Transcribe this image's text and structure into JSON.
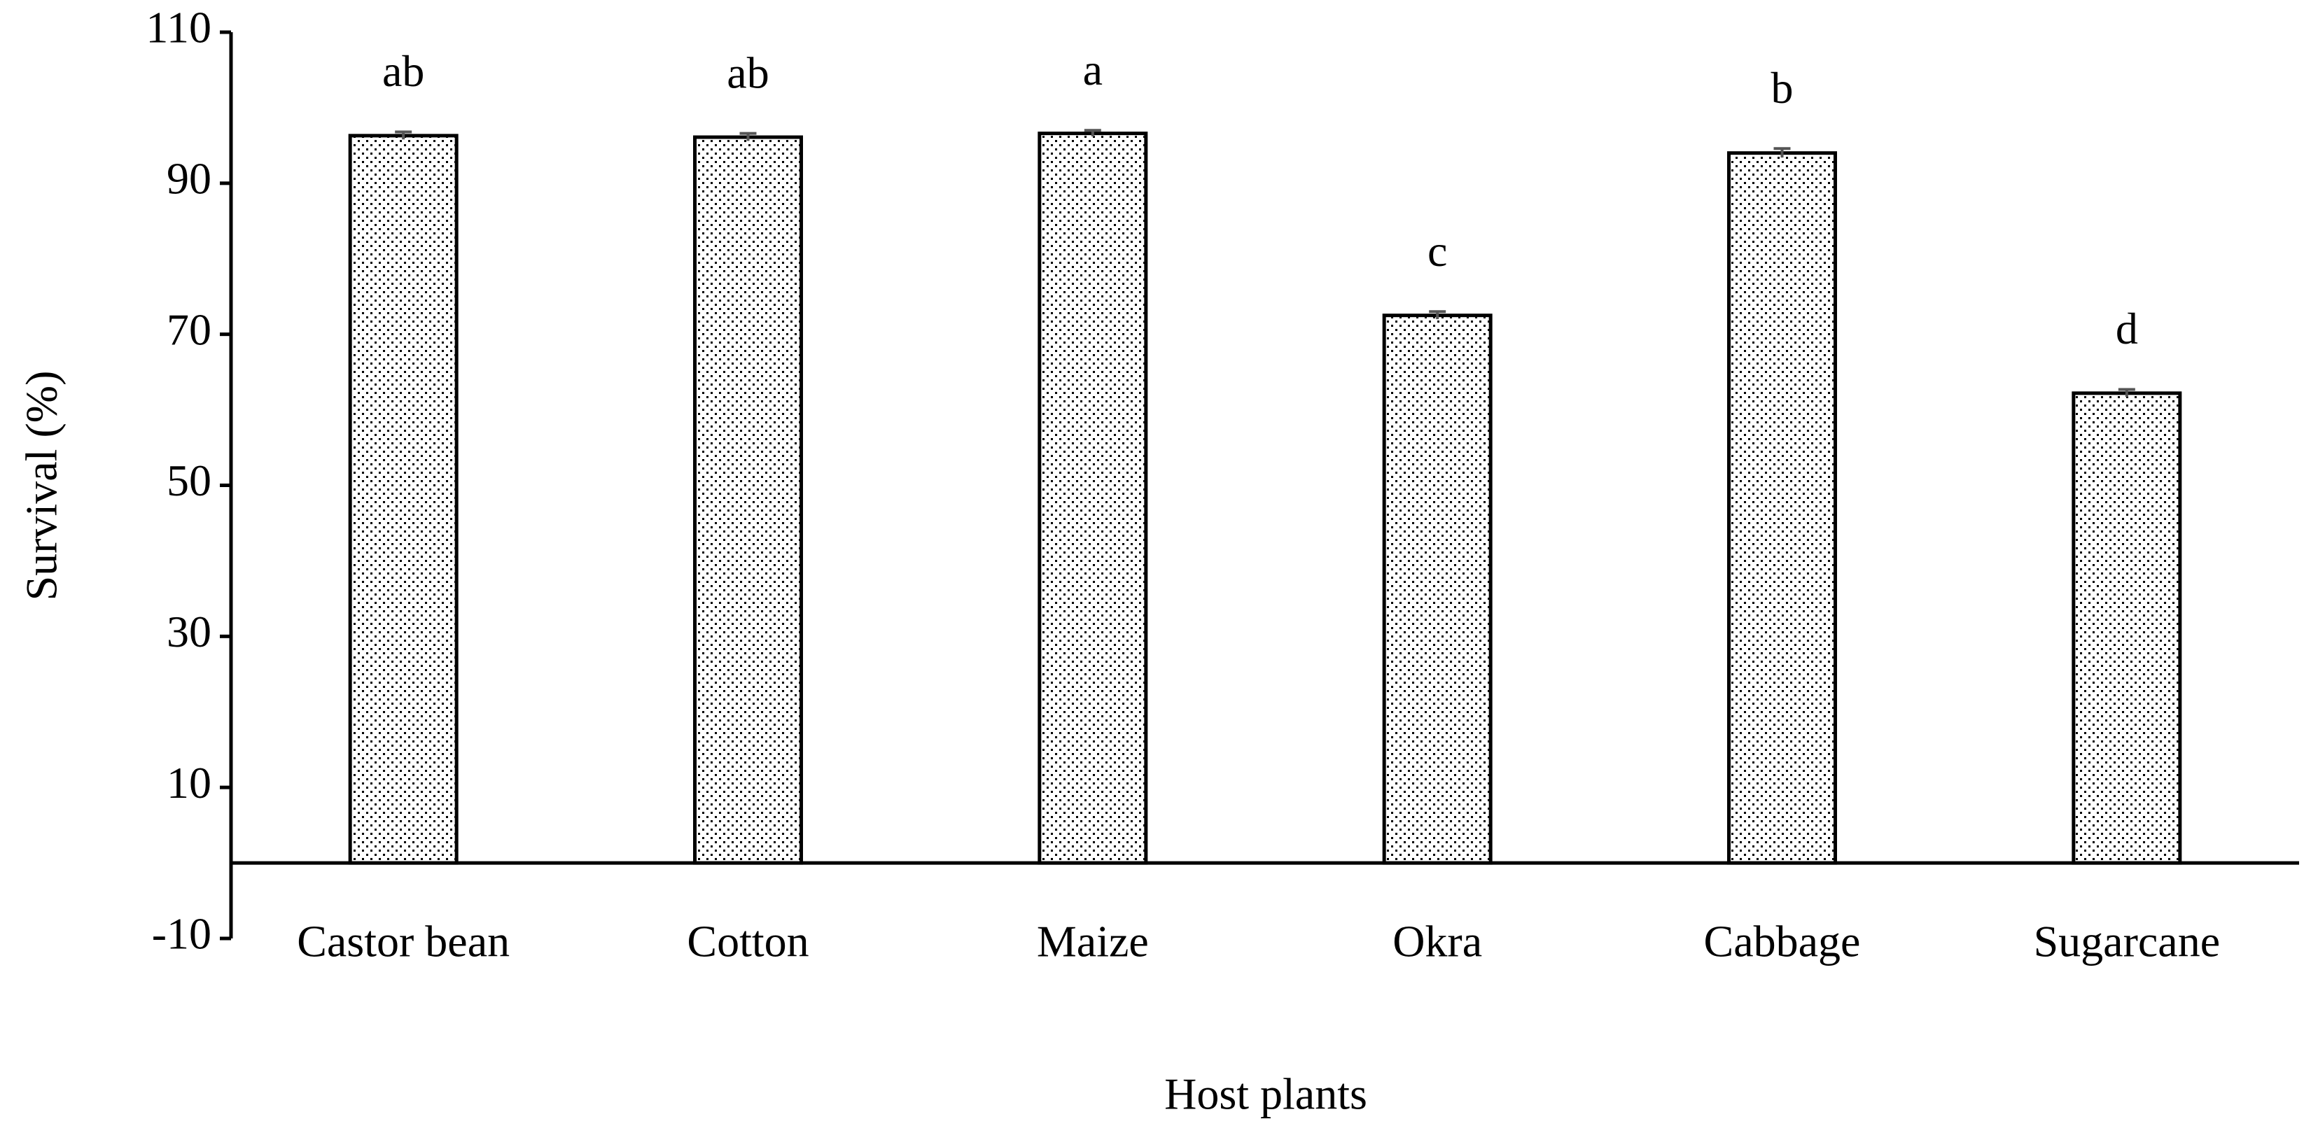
{
  "chart_data": {
    "type": "bar",
    "x_label": "Host plants",
    "y_label": "Survival (%)",
    "categories": [
      "Castor bean",
      "Cotton",
      "Maize",
      "Okra",
      "Cabbage",
      "Sugarcane"
    ],
    "values": [
      96.3,
      96.1,
      96.6,
      72.5,
      94.0,
      62.2
    ],
    "errors": [
      0.5,
      0.5,
      0.4,
      0.5,
      0.6,
      0.5
    ],
    "letters": [
      "ab",
      "ab",
      "a",
      "c",
      "b",
      "d"
    ],
    "color": "#000000",
    "ylim": [
      -10,
      110
    ],
    "yticks": [
      110,
      90,
      70,
      50,
      30,
      10,
      -10
    ],
    "grid": false
  }
}
